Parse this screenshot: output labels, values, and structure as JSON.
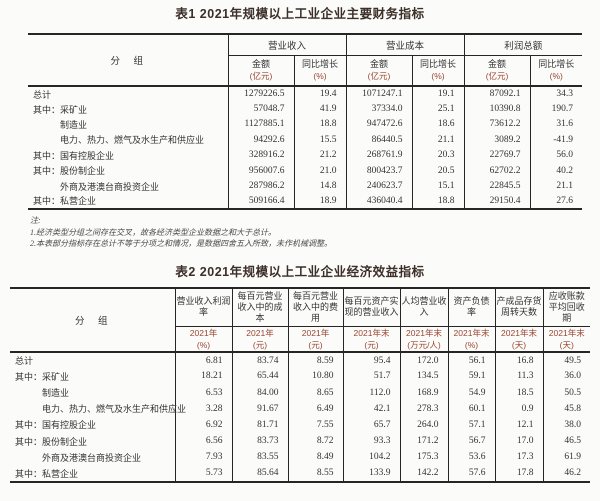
{
  "colors": {
    "page_bg": "#fbfbfa",
    "text": "#333333",
    "title": "#3c2f28",
    "unit_red": "#9a4530",
    "border": "#262626"
  },
  "table1": {
    "title": "表1 2021年规模以上工业企业主要财务指标",
    "group_header_label": "分　组",
    "col_groups": [
      {
        "label": "营业收入"
      },
      {
        "label": "营业成本"
      },
      {
        "label": "利润总额"
      }
    ],
    "sub_headers": [
      {
        "label": "金额",
        "unit": "(亿元)"
      },
      {
        "label": "同比增长",
        "unit": "(%)"
      },
      {
        "label": "金额",
        "unit": "(亿元)"
      },
      {
        "label": "同比增长",
        "unit": "(%)"
      },
      {
        "label": "金额",
        "unit": "(亿元)"
      },
      {
        "label": "同比增长",
        "unit": "(%)"
      }
    ],
    "rows": [
      {
        "label": "总计",
        "indent": false,
        "values": [
          "1279226.5",
          "19.4",
          "1071247.1",
          "19.1",
          "87092.1",
          "34.3"
        ]
      },
      {
        "label": "其中：采矿业",
        "indent": false,
        "values": [
          "57048.7",
          "41.9",
          "37334.0",
          "25.1",
          "10390.8",
          "190.7"
        ]
      },
      {
        "label": "制造业",
        "indent": true,
        "values": [
          "1127885.1",
          "18.8",
          "947472.6",
          "18.6",
          "73612.2",
          "31.6"
        ]
      },
      {
        "label": "电力、热力、燃气及水生产和供应业",
        "indent": true,
        "values": [
          "94292.6",
          "15.5",
          "86440.5",
          "21.1",
          "3089.2",
          "-41.9"
        ]
      },
      {
        "label": "其中：国有控股企业",
        "indent": false,
        "values": [
          "328916.2",
          "21.2",
          "268761.9",
          "20.3",
          "22769.7",
          "56.0"
        ]
      },
      {
        "label": "其中：股份制企业",
        "indent": false,
        "values": [
          "956007.6",
          "21.0",
          "800423.7",
          "20.5",
          "62702.2",
          "40.2"
        ]
      },
      {
        "label": "外商及港澳台商投资企业",
        "indent": true,
        "values": [
          "287986.2",
          "14.8",
          "240623.7",
          "15.1",
          "22845.5",
          "21.1"
        ]
      },
      {
        "label": "其中：私营企业",
        "indent": false,
        "values": [
          "509166.4",
          "18.9",
          "436040.4",
          "18.8",
          "29150.4",
          "27.6"
        ]
      }
    ],
    "notes": [
      "注:",
      "1.经济类型分组之间存在交叉，故各经济类型企业数据之和大于总计。",
      "2.本表部分指标存在总计不等于分项之和情况，是数据四舍五入所致，未作机械调整。"
    ]
  },
  "table2": {
    "title": "表2 2021年规模以上工业企业经济效益指标",
    "group_header_label": "分　组",
    "columns": [
      {
        "label": "营业收入利润率",
        "period": "2021年",
        "unit": "(%)"
      },
      {
        "label": "每百元营业收入中的成本",
        "period": "2021年",
        "unit": "(元)"
      },
      {
        "label": "每百元营业收入中的费用",
        "period": "2021年",
        "unit": "(元)"
      },
      {
        "label": "每百元资产实现的营业收入",
        "period": "2021年末",
        "unit": "(元)"
      },
      {
        "label": "人均营业收入",
        "period": "2021年末",
        "unit": "(万元/人)"
      },
      {
        "label": "资产负债率",
        "period": "2021年末",
        "unit": "(%)"
      },
      {
        "label": "产成品存货周转天数",
        "period": "2021年末",
        "unit": "(天)"
      },
      {
        "label": "应收账款平均回收期",
        "period": "2021年末",
        "unit": "(天)"
      }
    ],
    "rows": [
      {
        "label": "总计",
        "indent": false,
        "values": [
          "6.81",
          "83.74",
          "8.59",
          "95.4",
          "172.0",
          "56.1",
          "16.8",
          "49.5"
        ]
      },
      {
        "label": "其中：采矿业",
        "indent": false,
        "values": [
          "18.21",
          "65.44",
          "10.80",
          "51.7",
          "134.5",
          "59.1",
          "11.3",
          "36.0"
        ]
      },
      {
        "label": "制造业",
        "indent": true,
        "values": [
          "6.53",
          "84.00",
          "8.65",
          "112.0",
          "168.9",
          "54.9",
          "18.5",
          "50.5"
        ]
      },
      {
        "label": "电力、热力、燃气及水生产和供应业",
        "indent": true,
        "values": [
          "3.28",
          "91.67",
          "6.49",
          "42.1",
          "278.3",
          "60.1",
          "0.9",
          "45.8"
        ]
      },
      {
        "label": "其中：国有控股企业",
        "indent": false,
        "values": [
          "6.92",
          "81.71",
          "7.55",
          "65.7",
          "264.0",
          "57.1",
          "12.1",
          "38.0"
        ]
      },
      {
        "label": "其中：股份制企业",
        "indent": false,
        "values": [
          "6.56",
          "83.73",
          "8.72",
          "93.3",
          "171.2",
          "56.7",
          "17.0",
          "46.5"
        ]
      },
      {
        "label": "外商及港澳台商投资企业",
        "indent": true,
        "values": [
          "7.93",
          "83.55",
          "8.49",
          "104.2",
          "175.3",
          "53.6",
          "17.3",
          "61.9"
        ]
      },
      {
        "label": "其中：私营企业",
        "indent": false,
        "values": [
          "5.73",
          "85.64",
          "8.55",
          "133.9",
          "142.2",
          "57.6",
          "17.8",
          "46.2"
        ]
      }
    ]
  }
}
